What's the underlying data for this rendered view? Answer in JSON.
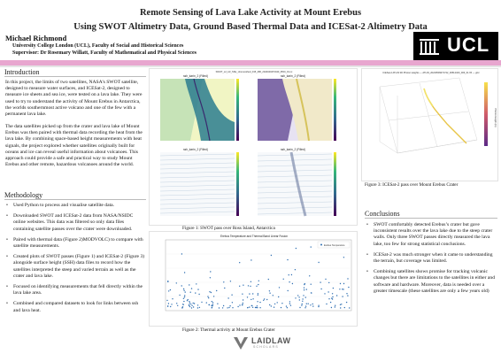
{
  "header": {
    "title_line1": "Remote Sensing of Lava Lake Activity at Mount Erebus",
    "title_line2": "Using SWOT Altimetry Data, Ground Based Thermal Data and ICESat-2 Altimetry Data",
    "author": "Michael Richmond",
    "affiliation": "University College London (UCL), Faculty of Social and Historical Sciences",
    "supervisor": "Supervisor: Dr Rosemary Willatt, Faculty of Mathematical and Physical Sciences",
    "logo_text": "UCL"
  },
  "introduction": {
    "heading": "Introduction",
    "para1": "In this project, the limits of two satellites, NASA’s SWOT satellite, designed to measure water surfaces, and ICESat-2, designed to measure ice sheets and sea ice, were tested on a lava lake. They were used to try to understand the activity of Mount Erebus in Antarctica, the worlds southernmost active volcano and one of the few with a permanent lava lake.",
    "para2": "The data satellites picked up from the crater and lava lake of Mount Erebus was then paired with thermal data recording the heat from the lava lake. By combining space-based height measurements with heat signals, the project explored whether satellites originally built for oceans and ice can reveal useful information about volcanoes. This approach could provide a safe and practical way to study Mount Erebus and other remote, hazardous volcanoes around the world."
  },
  "methodology": {
    "heading": "Methodology",
    "items": [
      "Used Python to process and visualise satellite data.",
      "Downloaded SWOT and ICESat-2 data from NASA/NSIDC online websites. This data was filtered so only data files containing satellite passes over the crater were downloaded.",
      "Paired with thermal data (Figure 2)MODVOLC) to compare with satellite measurements.",
      "Created plots of SWOT passes (Figure 1) and ICESat-2 (Figure 3) alongside surface height (SSH) data files to record how the satellites interpreted the steep and varied terrain as well as the crater and lava lake.",
      "Focused on identifying measurements that fell directly within the lava lake area.",
      "Combined and compared datasets to look for links between ssh and lava heat."
    ]
  },
  "conclusions": {
    "heading": "Conclusions",
    "items": [
      "SWOT comfortably detected Erebus’s crater but gave inconsistent results over the lava lake due to the steep crater walls. Only three SWOT passes directly measured the lava lake, too few for strong statistical conclusions.",
      "ICESat-2 was much stronger when it came to understanding the terrain, but coverage was limited.",
      "Combining satellites shows promise for tracking volcanic changes but there are limitations to the satellites in either and software and hardware. Moreover, data is needed over a greater timescale (these satellites are only a few years old)"
    ]
  },
  "figures": {
    "fig1_caption": "Figure 1: SWOT pass over Ross Island, Antarctica",
    "fig2_caption": "Figure 2: Thermal activity at Mount Erebus Crater",
    "fig3_caption": "Figure 3: ICESat-2 pass over Mount Erebus Crater",
    "fig1_header": "SWOT_L2_LR_SSH_Unsmoothed_015_480_20240404T2040_PID0_01.nc",
    "fig1_panels": [
      "ssh_karin_2 (Filled)",
      "ssh_karin_2 (Filled)",
      "ssh_karin_2 (Filled)",
      "ssh_karin_2 (Filled)"
    ],
    "fig2_title": "Erebus Temperature and Thermal Band Linear Fusion",
    "fig2_legend": "Erebus Temperature",
    "fig3_header": "ICESat-2 ATL03 3D Photon Heights — ATL03_20240509071742_00512320_006_01.h5 — gt1r",
    "fig3_ylabel": "Photon Height (m)"
  },
  "footer": {
    "logo_text": "LAIDLAW",
    "logo_sub": "SCHOLARS"
  },
  "colors": {
    "accent_pink": "#e8a6cf",
    "ucl_black": "#000000",
    "laidlaw_grey": "#555555"
  }
}
